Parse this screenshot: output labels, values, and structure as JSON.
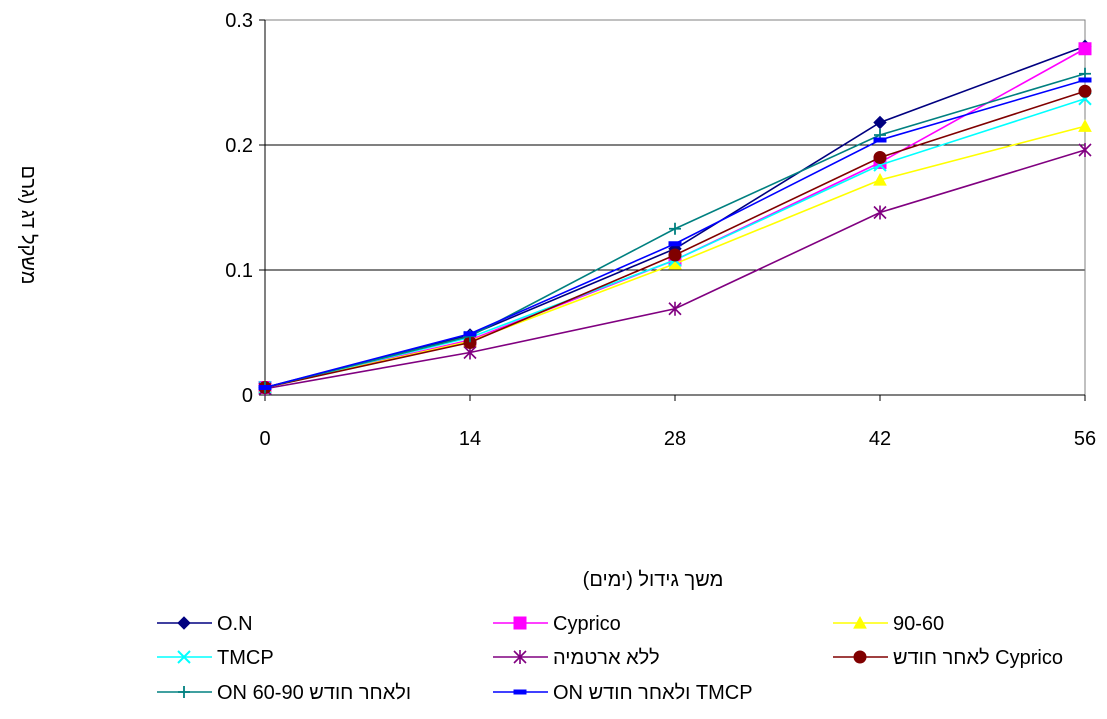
{
  "chart_data": {
    "type": "line",
    "x": [
      0,
      14,
      28,
      42,
      56
    ],
    "xticks": [
      "0",
      "14",
      "28",
      "42",
      "56"
    ],
    "yticks": [
      "0",
      "0.1",
      "0.2",
      "0.3"
    ],
    "ylim": [
      0,
      0.3
    ],
    "xlim": [
      0,
      56
    ],
    "xlabel": "משך גידול (ימים)",
    "ylabel": "משקל דג (גרם",
    "grid": "horizontal",
    "legend_position": "bottom",
    "series": [
      {
        "name": "O.N",
        "color": "#000080",
        "marker": "diamond",
        "values": [
          0.006,
          0.048,
          0.117,
          0.218,
          0.279
        ]
      },
      {
        "name": "Cyprico",
        "color": "#ff00ff",
        "marker": "square",
        "values": [
          0.006,
          0.044,
          0.108,
          0.186,
          0.277
        ]
      },
      {
        "name": "90-60",
        "color": "#ffff00",
        "marker": "triangle",
        "values": [
          0.006,
          0.043,
          0.105,
          0.172,
          0.215
        ]
      },
      {
        "name": "TMCP",
        "color": "#00ffff",
        "marker": "x",
        "values": [
          0.006,
          0.046,
          0.108,
          0.184,
          0.237
        ]
      },
      {
        "name": "ללא ארטמיה",
        "color": "#800080",
        "marker": "asterisk",
        "values": [
          0.005,
          0.034,
          0.069,
          0.146,
          0.196
        ]
      },
      {
        "name": "לאחר חודש Cyprico",
        "color": "#800000",
        "marker": "circle",
        "values": [
          0.006,
          0.042,
          0.112,
          0.19,
          0.243
        ]
      },
      {
        "name": "ON ולאחר חודש 60-90",
        "color": "#008080",
        "marker": "plus",
        "values": [
          0.006,
          0.047,
          0.133,
          0.208,
          0.257
        ]
      },
      {
        "name": "ON ולאחר חודש TMCP",
        "color": "#0000ff",
        "marker": "dash",
        "values": [
          0.006,
          0.049,
          0.121,
          0.204,
          0.252
        ]
      }
    ]
  }
}
